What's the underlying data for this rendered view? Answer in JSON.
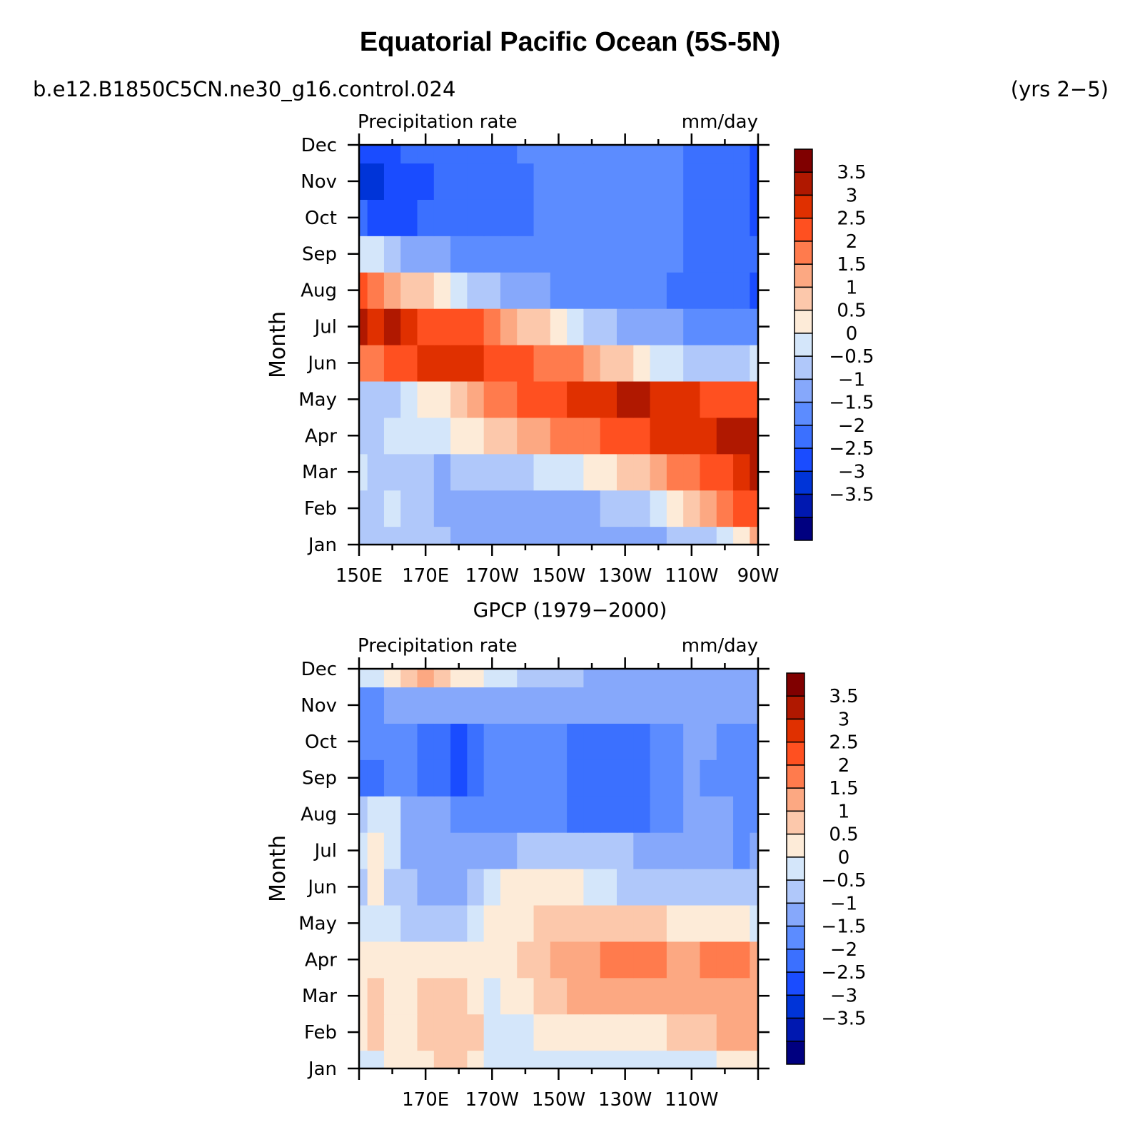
{
  "header": {
    "title": "Equatorial Pacific Ocean (5S-5N)",
    "case_name": "b.e12.B1850C5CN.ne30_g16.control.024",
    "years": "(yrs 2−5)"
  },
  "colors": {
    "levels_palette": [
      "#000080",
      "#0018b0",
      "#0034d8",
      "#1a4cff",
      "#3b70ff",
      "#5c8cff",
      "#86a8fb",
      "#b0c8fa",
      "#d4e6fa",
      "#fdebd8",
      "#fcc8ab",
      "#fca882",
      "#ff7b4d",
      "#ff5020",
      "#e03000",
      "#b01800",
      "#800000"
    ]
  },
  "chart_data": [
    {
      "type": "heatmap",
      "name": "model",
      "title": "",
      "left_label": "Precipitation rate",
      "right_label": "mm/day",
      "ylabel": "Month",
      "xlabel": "",
      "x_ticks": [
        "150E",
        "170E",
        "170W",
        "150W",
        "130W",
        "110W",
        "90W"
      ],
      "y_ticks": [
        "Jan",
        "Feb",
        "Mar",
        "Apr",
        "May",
        "Jun",
        "Jul",
        "Aug",
        "Sep",
        "Oct",
        "Nov",
        "Dec"
      ],
      "xlim_deg_east": [
        150,
        270
      ],
      "colorbar_labels": [
        "3.5",
        "3",
        "2.5",
        "2",
        "1.5",
        "1",
        "0.5",
        "0",
        "−0.5",
        "−1",
        "−1.5",
        "−2",
        "−2.5",
        "−3",
        "−3.5"
      ],
      "levels": [
        -3.5,
        -3,
        -2.5,
        -2,
        -1.5,
        -1,
        -0.5,
        0,
        0.5,
        1,
        1.5,
        2,
        2.5,
        3,
        3.5
      ],
      "x_deg_east": [
        150,
        155,
        160,
        165,
        170,
        175,
        180,
        185,
        190,
        195,
        200,
        205,
        210,
        215,
        220,
        225,
        230,
        235,
        240,
        245,
        250,
        255,
        260,
        265,
        270
      ],
      "month_index": [
        1,
        2,
        3,
        4,
        5,
        6,
        7,
        8,
        9,
        10,
        11,
        12
      ],
      "values": [
        [
          -0.3,
          -0.3,
          -0.3,
          -0.3,
          -0.3,
          -0.4,
          -0.6,
          -0.8,
          -1.0,
          -1.0,
          -1.0,
          -1.0,
          -1.0,
          -0.9,
          -0.9,
          -0.9,
          -0.8,
          -0.7,
          -0.6,
          -0.5,
          -0.3,
          -0.1,
          0.3,
          0.8,
          1.5
        ],
        [
          -0.3,
          -0.2,
          0.2,
          -0.3,
          -0.3,
          -0.7,
          -0.6,
          -0.6,
          -0.8,
          -0.9,
          -0.9,
          -0.9,
          -0.8,
          -0.7,
          -0.6,
          -0.5,
          -0.3,
          -0.1,
          0.2,
          0.6,
          1.1,
          1.6,
          2.2,
          2.7,
          2.8
        ],
        [
          0.3,
          -0.3,
          -0.2,
          -0.3,
          -0.3,
          -0.6,
          -0.5,
          -0.4,
          -0.3,
          -0.2,
          -0.1,
          0.0,
          0.2,
          0.4,
          0.6,
          0.8,
          1.0,
          1.3,
          1.6,
          2.0,
          2.3,
          2.6,
          2.8,
          3.2,
          3.6
        ],
        [
          -0.3,
          -0.3,
          0.2,
          0.3,
          0.3,
          0.4,
          0.6,
          0.8,
          1.0,
          1.3,
          1.6,
          1.8,
          2.0,
          2.1,
          2.3,
          2.5,
          2.6,
          2.8,
          3.0,
          3.1,
          3.2,
          3.4,
          3.6,
          3.8,
          3.7
        ],
        [
          -0.3,
          -0.3,
          -0.2,
          0.1,
          0.5,
          0.9,
          1.3,
          1.7,
          2.0,
          2.3,
          2.5,
          2.7,
          2.8,
          3.0,
          3.1,
          3.2,
          3.6,
          3.7,
          3.3,
          3.1,
          3.0,
          2.9,
          2.8,
          2.6,
          2.6
        ],
        [
          2.0,
          2.3,
          2.6,
          2.8,
          3.0,
          3.0,
          3.0,
          3.0,
          2.9,
          2.8,
          2.6,
          2.4,
          2.2,
          2.0,
          1.7,
          1.4,
          1.1,
          0.8,
          0.4,
          0.1,
          -0.2,
          -0.4,
          -0.5,
          -0.3,
          0.1
        ],
        [
          3.6,
          3.4,
          3.7,
          3.2,
          2.9,
          2.8,
          2.7,
          2.5,
          2.2,
          1.8,
          1.4,
          1.0,
          0.6,
          0.2,
          -0.1,
          -0.4,
          -0.6,
          -0.7,
          -0.8,
          -0.9,
          -1.1,
          -1.3,
          -1.4,
          -1.5,
          -1.5
        ],
        [
          2.5,
          2.2,
          1.8,
          1.4,
          1.0,
          0.6,
          0.2,
          -0.2,
          -0.5,
          -0.8,
          -0.9,
          -1.0,
          -1.1,
          -1.2,
          -1.3,
          -1.3,
          -1.4,
          -1.4,
          -1.5,
          -1.6,
          -1.7,
          -1.8,
          -1.9,
          -2.0,
          -2.1
        ],
        [
          0.3,
          0.0,
          -0.3,
          -0.6,
          -0.8,
          -1.0,
          -1.2,
          -1.3,
          -1.4,
          -1.4,
          -1.4,
          -1.4,
          -1.4,
          -1.4,
          -1.4,
          -1.4,
          -1.4,
          -1.5,
          -1.5,
          -1.5,
          -1.6,
          -1.8,
          -1.9,
          -1.9,
          -2.0
        ],
        [
          -1.9,
          -2.1,
          -2.3,
          -2.2,
          -2.0,
          -1.9,
          -1.8,
          -1.7,
          -1.6,
          -1.6,
          -1.6,
          -1.5,
          -1.5,
          -1.5,
          -1.5,
          -1.5,
          -1.5,
          -1.5,
          -1.5,
          -1.5,
          -1.6,
          -1.8,
          -2.0,
          -2.0,
          -2.1
        ],
        [
          -2.7,
          -2.6,
          -2.5,
          -2.4,
          -2.1,
          -2.0,
          -2.0,
          -2.0,
          -2.0,
          -2.0,
          -1.9,
          -1.5,
          -1.5,
          -1.5,
          -1.5,
          -1.5,
          -1.5,
          -1.5,
          -1.5,
          -1.5,
          -1.6,
          -1.9,
          -2.0,
          -2.0,
          -2.2
        ],
        [
          -2.4,
          -2.3,
          -2.1,
          -2.0,
          -1.9,
          -2.0,
          -2.0,
          -2.0,
          -1.8,
          -1.6,
          -1.5,
          -1.5,
          -1.5,
          -1.5,
          -1.5,
          -1.5,
          -1.5,
          -1.5,
          -1.5,
          -1.5,
          -1.6,
          -1.9,
          -2.0,
          -2.0,
          -2.1
        ]
      ]
    },
    {
      "type": "heatmap",
      "name": "observations",
      "title": "GPCP (1979−2000)",
      "left_label": "Precipitation rate",
      "right_label": "mm/day",
      "ylabel": "Month",
      "xlabel": "",
      "x_ticks": [
        "170E",
        "170W",
        "150W",
        "130W",
        "110W"
      ],
      "y_ticks": [
        "Jan",
        "Feb",
        "Mar",
        "Apr",
        "May",
        "Jun",
        "Jul",
        "Aug",
        "Sep",
        "Oct",
        "Nov",
        "Dec"
      ],
      "xlim_deg_east": [
        150,
        270
      ],
      "colorbar_labels": [
        "3.5",
        "3",
        "2.5",
        "2",
        "1.5",
        "1",
        "0.5",
        "0",
        "−0.5",
        "−1",
        "−1.5",
        "−2",
        "−2.5",
        "−3",
        "−3.5"
      ],
      "levels": [
        -3.5,
        -3,
        -2.5,
        -2,
        -1.5,
        -1,
        -0.5,
        0,
        0.5,
        1,
        1.5,
        2,
        2.5,
        3,
        3.5
      ],
      "x_deg_east": [
        150,
        155,
        160,
        165,
        170,
        175,
        180,
        185,
        190,
        195,
        200,
        205,
        210,
        215,
        220,
        225,
        230,
        235,
        240,
        245,
        250,
        255,
        260,
        265,
        270
      ],
      "month_index": [
        1,
        2,
        3,
        4,
        5,
        6,
        7,
        8,
        9,
        10,
        11,
        12
      ],
      "values": [
        [
          0.4,
          0.3,
          0.6,
          0.8,
          0.9,
          1.1,
          1.3,
          0.6,
          0.3,
          0.2,
          0.2,
          0.2,
          0.2,
          0.2,
          0.2,
          0.2,
          0.1,
          0.0,
          0.1,
          0.2,
          0.3,
          0.4,
          0.5,
          0.6,
          0.7
        ],
        [
          0.6,
          1.1,
          0.9,
          0.9,
          1.2,
          1.4,
          1.1,
          1.0,
          0.4,
          0.3,
          0.4,
          0.5,
          0.5,
          0.5,
          0.6,
          0.7,
          0.8,
          0.9,
          0.9,
          1.0,
          1.1,
          1.3,
          1.5,
          1.6,
          1.5
        ],
        [
          0.9,
          1.2,
          0.8,
          0.7,
          1.1,
          1.2,
          1.1,
          0.7,
          0.4,
          0.6,
          0.9,
          1.1,
          1.3,
          1.5,
          1.6,
          1.7,
          1.7,
          1.8,
          1.8,
          1.8,
          1.7,
          1.7,
          1.8,
          1.8,
          1.7
        ],
        [
          0.5,
          0.6,
          0.7,
          0.8,
          0.9,
          0.9,
          0.8,
          0.7,
          0.6,
          0.9,
          1.1,
          1.3,
          1.5,
          1.6,
          1.8,
          2.0,
          2.1,
          2.1,
          2.0,
          1.9,
          1.8,
          2.0,
          2.1,
          2.1,
          1.8
        ],
        [
          0.0,
          0.3,
          0.1,
          -0.2,
          -0.3,
          -0.3,
          -0.3,
          0.3,
          0.6,
          0.8,
          0.9,
          1.0,
          1.1,
          1.2,
          1.2,
          1.2,
          1.1,
          1.1,
          1.0,
          0.9,
          0.8,
          0.7,
          0.6,
          0.5,
          0.4
        ],
        [
          -0.2,
          0.7,
          -0.1,
          -0.5,
          -0.6,
          -0.6,
          -0.6,
          -0.3,
          0.2,
          0.6,
          0.8,
          0.9,
          0.7,
          0.5,
          0.3,
          0.1,
          -0.1,
          -0.2,
          -0.3,
          -0.3,
          -0.3,
          -0.3,
          -0.3,
          -0.3,
          -0.3
        ],
        [
          0.3,
          0.8,
          0.2,
          -0.6,
          -0.7,
          -0.7,
          -0.8,
          -0.8,
          -0.8,
          -0.6,
          -0.4,
          -0.3,
          -0.3,
          -0.3,
          -0.4,
          -0.5,
          -0.5,
          -0.6,
          -0.7,
          -0.7,
          -0.8,
          -0.9,
          -1.0,
          -1.1,
          -1.0
        ],
        [
          -0.5,
          0.2,
          0.1,
          -0.8,
          -0.9,
          -1.0,
          -1.1,
          -1.2,
          -1.2,
          -1.2,
          -1.3,
          -1.3,
          -1.5,
          -1.6,
          -1.6,
          -1.6,
          -1.6,
          -1.6,
          -1.5,
          -1.2,
          -1.0,
          -1.0,
          -1.0,
          -1.1,
          -1.1
        ],
        [
          -1.9,
          -1.6,
          -1.2,
          -1.4,
          -1.8,
          -2.0,
          -2.1,
          -1.7,
          -1.3,
          -1.2,
          -1.2,
          -1.4,
          -1.5,
          -1.6,
          -1.6,
          -1.6,
          -1.6,
          -1.6,
          -1.4,
          -1.2,
          -1.0,
          -1.1,
          -1.3,
          -1.3,
          -1.2
        ],
        [
          -1.3,
          -1.2,
          -1.3,
          -1.4,
          -1.6,
          -1.9,
          -2.1,
          -1.8,
          -1.4,
          -1.2,
          -1.1,
          -1.3,
          -1.5,
          -1.6,
          -1.6,
          -1.6,
          -1.6,
          -1.6,
          -1.4,
          -1.1,
          -0.9,
          -1.0,
          -1.3,
          -1.4,
          -1.2
        ],
        [
          -1.1,
          -1.2,
          -0.9,
          -0.6,
          -0.6,
          -0.7,
          -0.8,
          -0.9,
          -0.9,
          -1.0,
          -1.0,
          -1.0,
          -1.0,
          -1.0,
          -1.0,
          -1.0,
          -1.0,
          -1.0,
          -1.0,
          -1.0,
          -1.0,
          -1.0,
          -1.0,
          -1.0,
          -1.0
        ],
        [
          0.1,
          0.3,
          0.7,
          1.0,
          1.6,
          1.2,
          0.9,
          0.6,
          0.3,
          0.0,
          -0.3,
          -0.4,
          -0.5,
          -0.5,
          -0.6,
          -0.6,
          -0.6,
          -0.7,
          -0.8,
          -0.8,
          -0.8,
          -0.9,
          -0.9,
          -0.9,
          -0.9
        ]
      ]
    }
  ]
}
